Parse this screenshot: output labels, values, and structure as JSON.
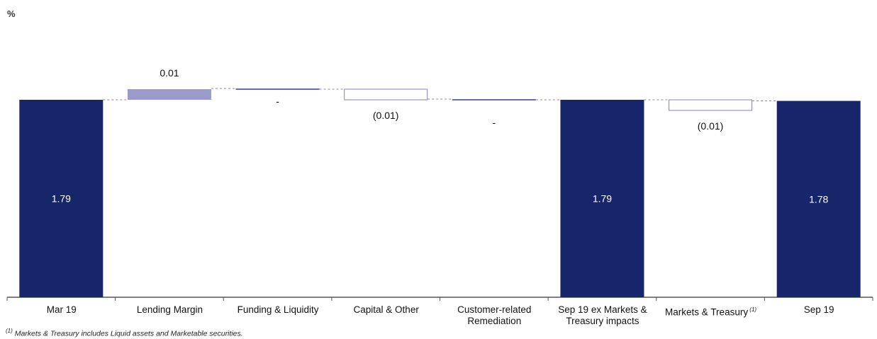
{
  "unit_label": "%",
  "footnote": {
    "marker": "(1)",
    "text": "Markets & Treasury includes Liquid assets and Marketable securities."
  },
  "colors": {
    "total": "#17256b",
    "increase": "#9b9bc9",
    "decrease_outline": "#8080c0",
    "flat": "#6b6bb3",
    "axis": "#555555"
  },
  "chart_data": {
    "type": "bar",
    "subtype": "waterfall",
    "title": "",
    "xlabel": "",
    "ylabel": "%",
    "ylim": [
      0,
      1.8
    ],
    "grid": false,
    "legend": "none",
    "categories": [
      "Mar 19",
      "Lending Margin",
      "Funding & Liquidity",
      "Capital & Other",
      "Customer-related Remediation",
      "Sep 19 ex Markets & Treasury impacts",
      "Markets & Treasury",
      "Sep 19"
    ],
    "category_label_lines": [
      [
        "Mar 19"
      ],
      [
        "Lending Margin"
      ],
      [
        "Funding & Liquidity"
      ],
      [
        "Capital & Other"
      ],
      [
        "Customer-related",
        "Remediation"
      ],
      [
        "Sep 19 ex Markets &",
        "Treasury impacts"
      ],
      [
        "Markets & Treasury"
      ],
      [
        "Sep 19"
      ]
    ],
    "category_footnote": [
      "",
      "",
      "",
      "",
      "",
      "",
      "(1)",
      ""
    ],
    "kinds": [
      "total",
      "increase",
      "flat",
      "decrease",
      "flat",
      "total",
      "decrease",
      "total"
    ],
    "values": [
      1.79,
      0.01,
      0.0,
      -0.01,
      0.0,
      1.79,
      -0.01,
      1.78
    ],
    "data_labels": [
      "1.79",
      "0.01",
      "-",
      "(0.01)",
      "-",
      "1.79",
      "(0.01)",
      "1.78"
    ]
  }
}
